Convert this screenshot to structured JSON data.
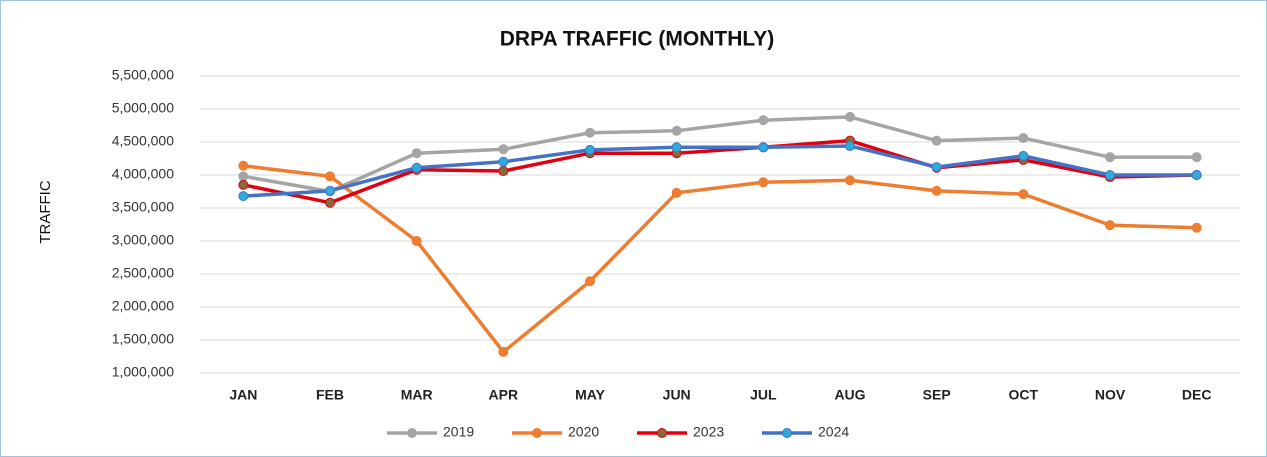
{
  "chart_data": {
    "type": "line",
    "title": "DRPA TRAFFIC (MONTHLY)",
    "y_label": "TRAFFIC",
    "categories": [
      "JAN",
      "FEB",
      "MAR",
      "APR",
      "MAY",
      "JUN",
      "JUL",
      "AUG",
      "SEP",
      "OCT",
      "NOV",
      "DEC"
    ],
    "series": [
      {
        "name": "2019",
        "color": "#a5a5a5",
        "marker_color": "#a5a5a5",
        "values": [
          3980000,
          3750000,
          4330000,
          4390000,
          4640000,
          4670000,
          4830000,
          4880000,
          4520000,
          4560000,
          4270000,
          4270000
        ]
      },
      {
        "name": "2020",
        "color": "#ed7d31",
        "marker_color": "#ed7d31",
        "values": [
          4140000,
          3980000,
          3000000,
          1320000,
          2390000,
          3730000,
          3890000,
          3920000,
          3760000,
          3710000,
          3240000,
          3200000
        ]
      },
      {
        "name": "2023",
        "color": "#e00010",
        "marker_color": "#8b6a3a",
        "values": [
          3850000,
          3580000,
          4080000,
          4060000,
          4330000,
          4330000,
          4420000,
          4520000,
          4110000,
          4230000,
          3970000,
          4000000
        ]
      },
      {
        "name": "2024",
        "color": "#4472c4",
        "marker_color": "#2eaadc",
        "values": [
          3680000,
          3760000,
          4110000,
          4200000,
          4380000,
          4420000,
          4420000,
          4440000,
          4120000,
          4290000,
          4000000,
          4000000
        ]
      }
    ],
    "ylim": [
      1000000,
      5500000
    ],
    "yticks": [
      {
        "value": 1000000,
        "label": "1,000,000"
      },
      {
        "value": 1500000,
        "label": "1,500,000"
      },
      {
        "value": 2000000,
        "label": "2,000,000"
      },
      {
        "value": 2500000,
        "label": "2,500,000"
      },
      {
        "value": 3000000,
        "label": "3,000,000"
      },
      {
        "value": 3500000,
        "label": "3,500,000"
      },
      {
        "value": 4000000,
        "label": "4,000,000"
      },
      {
        "value": 4500000,
        "label": "4,500,000"
      },
      {
        "value": 5000000,
        "label": "5,000,000"
      },
      {
        "value": 5500000,
        "label": "5,500,000"
      }
    ],
    "grid": true,
    "legend": "bottom"
  }
}
